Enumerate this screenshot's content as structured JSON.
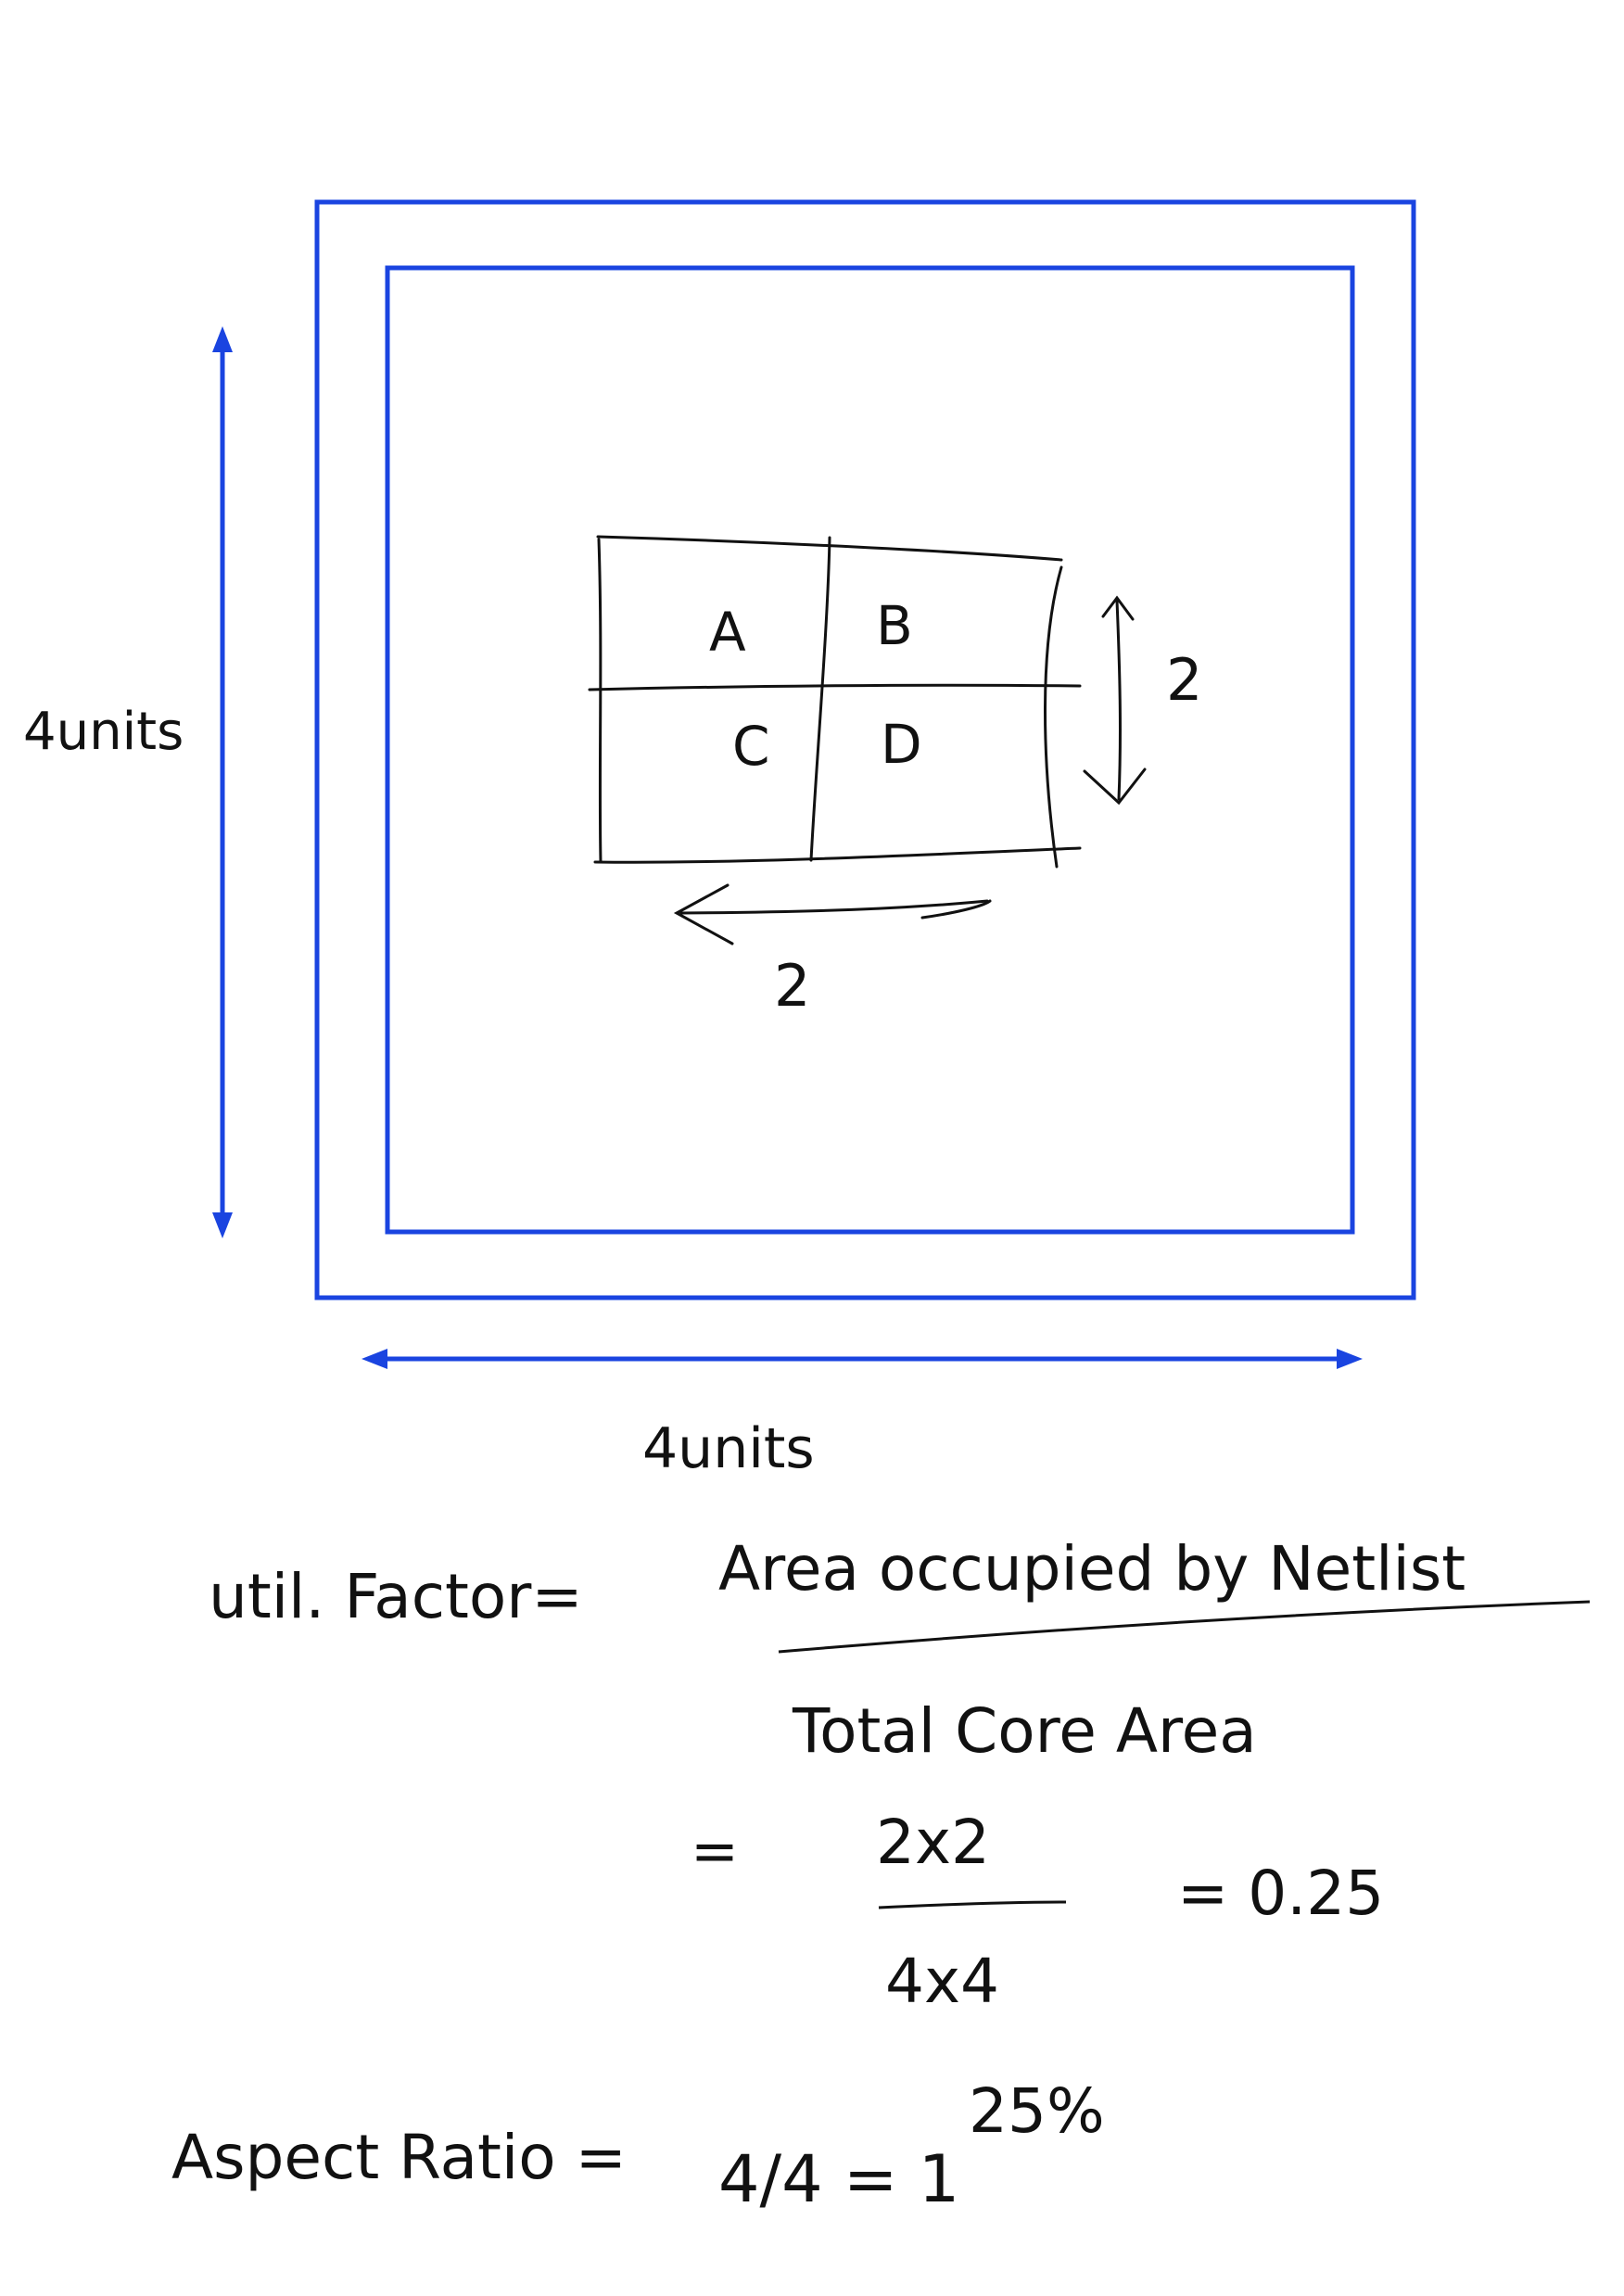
{
  "diagram": {
    "colors": {
      "blue": "#1a44e0",
      "ink": "#111111"
    },
    "labels": {
      "height": "4units",
      "width": "4units",
      "cell_a": "A",
      "cell_b": "B",
      "cell_c": "C",
      "cell_d": "D",
      "block_height": "2",
      "block_width": "2"
    }
  },
  "notes": {
    "util_label": "util. Factor=",
    "numerator": "Area occupied by Netlist",
    "denominator": "Total Core Area",
    "eq_sign": "=",
    "frac_num": "2x2",
    "frac_den": "4x4",
    "result": "= 0.25",
    "percent": "25%",
    "aspect_label": "Aspect Ratio =",
    "aspect_value": "4/4 = 1"
  }
}
